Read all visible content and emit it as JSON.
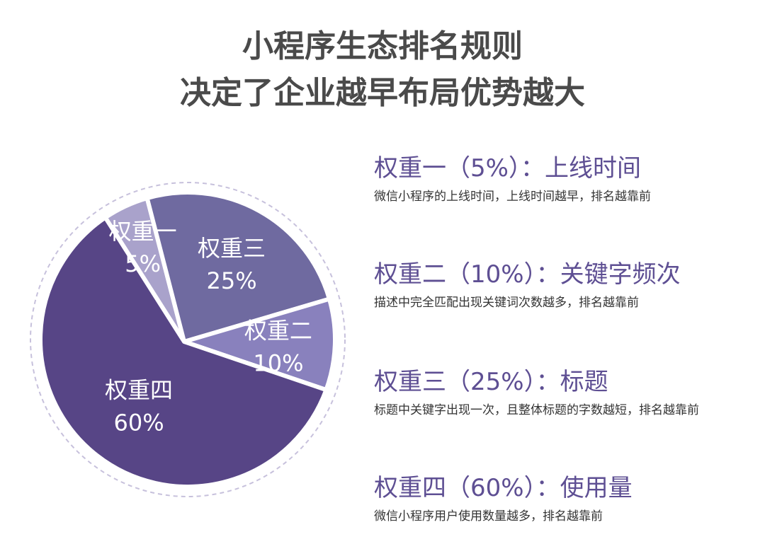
{
  "header": {
    "title_line1": "小程序生态排名规则",
    "title_line2": "决定了企业越早布局优势越大"
  },
  "chart_data": {
    "type": "pie",
    "categories": [
      "权重一",
      "权重三",
      "权重二",
      "权重四"
    ],
    "values": [
      5,
      25,
      10,
      60
    ],
    "labels": [
      "5%",
      "25%",
      "10%",
      "60%"
    ],
    "colors": [
      "#a9a2cb",
      "#6f6aa0",
      "#8981bd",
      "#574586"
    ],
    "dashed_outline": true
  },
  "legend": {
    "items": [
      {
        "heading": "权重一（5%）：上线时间",
        "description": "微信小程序的上线时间，上线时间越早，排名越靠前"
      },
      {
        "heading": "权重二（10%）：关键字频次",
        "description": "描述中完全匹配出现关键词次数越多，排名越靠前"
      },
      {
        "heading": "权重三（25%）：标题",
        "description": "标题中关键字出现一次，且整体标题的字数越短，排名越靠前"
      },
      {
        "heading": "权重四（60%）：使用量",
        "description": "微信小程序用户使用数量越多，排名越靠前"
      }
    ]
  }
}
